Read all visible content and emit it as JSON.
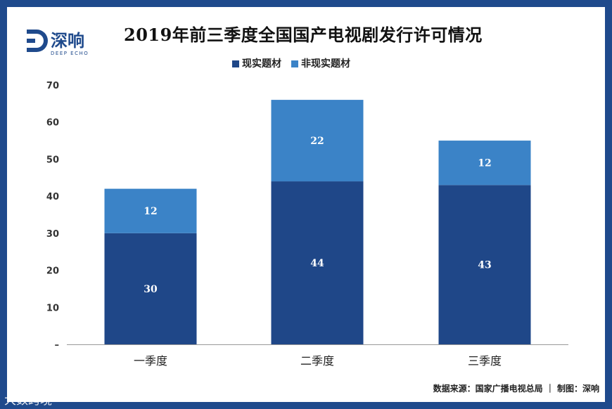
{
  "brand": {
    "logo_text": "深响",
    "logo_sub": "DEEP ECHO"
  },
  "chart_data": {
    "type": "bar",
    "stacked": true,
    "title": "2019年前三季度全国国产电视剧发行许可情况",
    "categories": [
      "一季度",
      "二季度",
      "三季度"
    ],
    "series": [
      {
        "name": "现实题材",
        "values": [
          30,
          44,
          43
        ],
        "color": "#1f4788"
      },
      {
        "name": "非现实题材",
        "values": [
          12,
          22,
          12
        ],
        "color": "#3b83c7"
      }
    ],
    "ylim": [
      0,
      70
    ],
    "yticks": [
      "–",
      "10",
      "20",
      "30",
      "40",
      "50",
      "60",
      "70"
    ],
    "grid": false,
    "legend": "top"
  },
  "source": "数据来源：国家广播电视总局 ｜ 制图：深响",
  "watermark": "大数跨境"
}
